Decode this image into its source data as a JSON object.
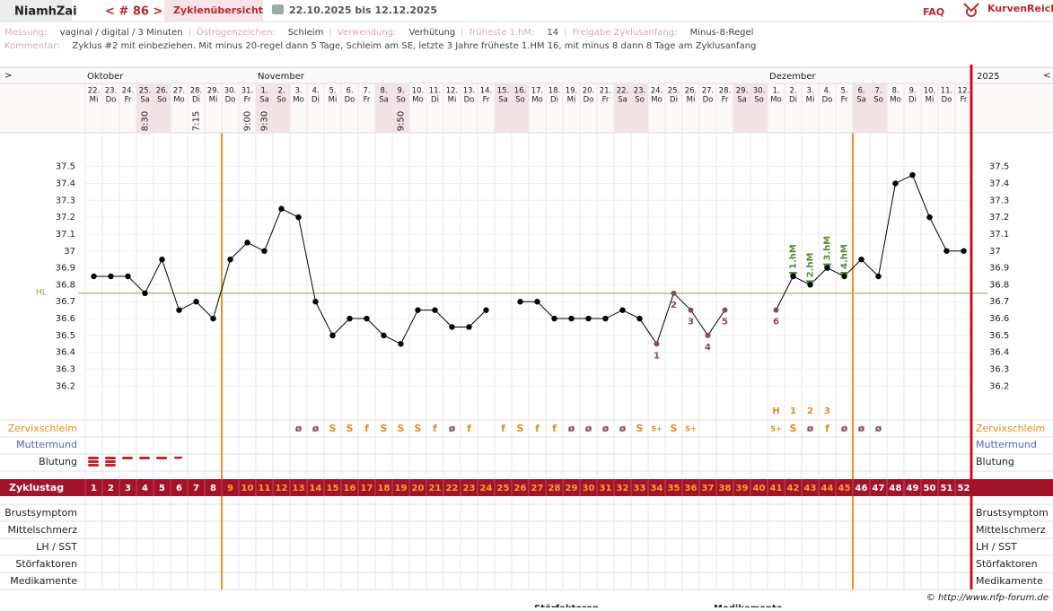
{
  "header": {
    "user": "NiamhZai",
    "cycle": "< # 86 >",
    "overview": "Zyklenübersicht",
    "range": "22.10.2025 bis 12.12.2025",
    "faq": "FAQ",
    "brand": "KurvenReich"
  },
  "info": {
    "separator": "|",
    "items": [
      {
        "label": "Messung:",
        "value": "vaginal / digital / 3 Minuten"
      },
      {
        "label": "Östrogenzeichen:",
        "value": "Schleim"
      },
      {
        "label": "Verwendung:",
        "value": "Verhütung"
      },
      {
        "label": "früheste 1.hM:",
        "value": "14"
      },
      {
        "label": "Freigabe Zyklusanfang:",
        "value": "Minus-8-Regel"
      }
    ],
    "comment_label": "Kommentar:",
    "comment": "Zyklus #2  mit einbeziehen. Mit minus 20-regel dann 5 Tage,  Schleim am SE, letzte 3 Jahre früheste 1.HM 16, mit minus 8 dann 8 Tage am Zyklusanfang"
  },
  "chart_data": {
    "type": "line",
    "nav_left": ">",
    "nav_right": "<",
    "year": "2025",
    "months": [
      "Oktober",
      null,
      null,
      null,
      null,
      null,
      null,
      null,
      null,
      null,
      "November",
      null,
      null,
      null,
      null,
      null,
      null,
      null,
      null,
      null,
      null,
      null,
      null,
      null,
      null,
      null,
      null,
      null,
      null,
      null,
      null,
      null,
      null,
      null,
      null,
      null,
      null,
      null,
      null,
      null,
      "Dezember",
      null,
      null,
      null,
      null,
      null,
      null,
      null,
      null,
      null,
      null,
      null
    ],
    "day_numbers": [
      "22.",
      "23.",
      "24.",
      "25.",
      "26.",
      "27.",
      "28.",
      "29.",
      "30.",
      "31.",
      "1.",
      "2.",
      "3.",
      "4.",
      "5.",
      "6.",
      "7.",
      "8.",
      "9.",
      "10.",
      "11.",
      "12.",
      "13.",
      "14.",
      "15.",
      "16.",
      "17.",
      "18.",
      "19.",
      "20.",
      "21.",
      "22.",
      "23.",
      "24.",
      "25.",
      "26.",
      "27.",
      "28.",
      "29.",
      "30.",
      "1.",
      "2.",
      "3.",
      "4.",
      "5.",
      "6.",
      "7.",
      "8.",
      "9.",
      "10.",
      "11.",
      "12."
    ],
    "weekdays": [
      "Mi",
      "Do",
      "Fr",
      "Sa",
      "So",
      "Mo",
      "Di",
      "Mi",
      "Do",
      "Fr",
      "Sa",
      "So",
      "Mo",
      "Di",
      "Mi",
      "Do",
      "Fr",
      "Sa",
      "So",
      "Mo",
      "Di",
      "Mi",
      "Do",
      "Fr",
      "Sa",
      "So",
      "Mo",
      "Di",
      "Mi",
      "Do",
      "Fr",
      "Sa",
      "So",
      "Mo",
      "Di",
      "Mi",
      "Do",
      "Fr",
      "Sa",
      "So",
      "Mo",
      "Di",
      "Mi",
      "Do",
      "Fr",
      "Sa",
      "So",
      "Mo",
      "Di",
      "Mi",
      "Do",
      "Fr"
    ],
    "times": [
      null,
      null,
      null,
      "8:30",
      null,
      null,
      "7:15",
      null,
      null,
      "9:00",
      "9:30",
      null,
      null,
      null,
      null,
      null,
      null,
      null,
      "9:50",
      null,
      null,
      null,
      null,
      null,
      null,
      null,
      null,
      null,
      null,
      null,
      null,
      null,
      null,
      null,
      null,
      null,
      null,
      null,
      null,
      null,
      null,
      null,
      null,
      null,
      null,
      null,
      null,
      null,
      null,
      null,
      null,
      null
    ],
    "x": [
      1,
      2,
      3,
      4,
      5,
      6,
      7,
      8,
      9,
      10,
      11,
      12,
      13,
      14,
      15,
      16,
      17,
      18,
      19,
      20,
      21,
      22,
      23,
      24,
      25,
      26,
      27,
      28,
      29,
      30,
      31,
      32,
      33,
      34,
      35,
      36,
      37,
      38,
      39,
      40,
      41,
      42,
      43,
      44,
      45,
      46,
      47,
      48,
      49,
      50,
      51,
      52
    ],
    "values": [
      36.85,
      36.85,
      36.85,
      36.75,
      36.95,
      36.65,
      36.7,
      36.6,
      36.95,
      37.05,
      37.0,
      37.25,
      37.2,
      36.7,
      36.5,
      36.6,
      36.6,
      36.5,
      36.45,
      36.65,
      36.65,
      36.55,
      36.55,
      36.65,
      null,
      36.7,
      36.7,
      36.6,
      36.6,
      36.6,
      36.6,
      36.65,
      36.6,
      36.45,
      36.75,
      36.65,
      36.5,
      36.65,
      null,
      null,
      36.65,
      36.85,
      36.8,
      36.9,
      36.85,
      36.95,
      36.85,
      37.4,
      37.45,
      37.2,
      37.0,
      37.0
    ],
    "point_labels": [
      null,
      null,
      null,
      null,
      null,
      null,
      null,
      null,
      null,
      null,
      null,
      null,
      null,
      null,
      null,
      null,
      null,
      null,
      null,
      null,
      null,
      null,
      null,
      null,
      null,
      null,
      null,
      null,
      null,
      null,
      null,
      null,
      null,
      "1",
      "2",
      "3",
      "4",
      "5",
      null,
      null,
      "6",
      null,
      null,
      null,
      null,
      null,
      null,
      null,
      null,
      null,
      null,
      null
    ],
    "hm_labels": [
      null,
      null,
      null,
      null,
      null,
      null,
      null,
      null,
      null,
      null,
      null,
      null,
      null,
      null,
      null,
      null,
      null,
      null,
      null,
      null,
      null,
      null,
      null,
      null,
      null,
      null,
      null,
      null,
      null,
      null,
      null,
      null,
      null,
      null,
      null,
      null,
      null,
      null,
      null,
      null,
      null,
      "1.hM",
      "2.hM",
      "3.hM",
      "4.hM",
      null,
      null,
      null,
      null,
      null,
      null,
      null
    ],
    "color": "#000000",
    "label_color": "#8a4b57",
    "hm_color": "#5d8a35",
    "ylim": [
      36.0,
      37.7
    ],
    "yticks": [
      36.2,
      36.3,
      36.4,
      36.5,
      36.6,
      36.7,
      36.8,
      36.9,
      37,
      37.1,
      37.2,
      37.3,
      37.4,
      37.5
    ],
    "hl": 36.75,
    "hl_label": "HL",
    "hl_color": "#7aa650",
    "cycle_marks_after_day": [
      8,
      45
    ],
    "mucus_peak": [
      null,
      null,
      null,
      null,
      null,
      null,
      null,
      null,
      null,
      null,
      null,
      null,
      null,
      null,
      null,
      null,
      null,
      null,
      null,
      null,
      null,
      null,
      null,
      null,
      null,
      null,
      null,
      null,
      null,
      null,
      null,
      null,
      null,
      null,
      null,
      null,
      null,
      null,
      null,
      null,
      "H",
      "1",
      "2",
      "3",
      null,
      null,
      null,
      null,
      null,
      null,
      null,
      null
    ],
    "mucus": [
      null,
      null,
      null,
      null,
      null,
      null,
      null,
      null,
      null,
      null,
      null,
      null,
      "ø",
      "ø",
      "S",
      "S",
      "f",
      "S",
      "S",
      "S",
      "f",
      "ø",
      "f",
      null,
      "f",
      "S",
      "f",
      "f",
      "ø",
      "ø",
      "ø",
      "ø",
      "S",
      "S+",
      "S",
      "S+",
      null,
      null,
      null,
      null,
      "S+",
      "S",
      "ø",
      "f",
      "ø",
      "ø",
      "ø",
      null,
      null,
      null,
      null,
      null
    ],
    "row_labels": [
      "Zervixschleim",
      "Muttermund",
      "Blutung"
    ],
    "cycle_label": "Zyklustag",
    "lower_labels": [
      "Brustsymptom",
      "Mittelschmerz",
      "LH / SST",
      "Störfaktoren",
      "Medikamente"
    ]
  },
  "footer": "© http://www.nfp-forum.de",
  "below": [
    "Störfaktoren",
    "Medikamente"
  ]
}
